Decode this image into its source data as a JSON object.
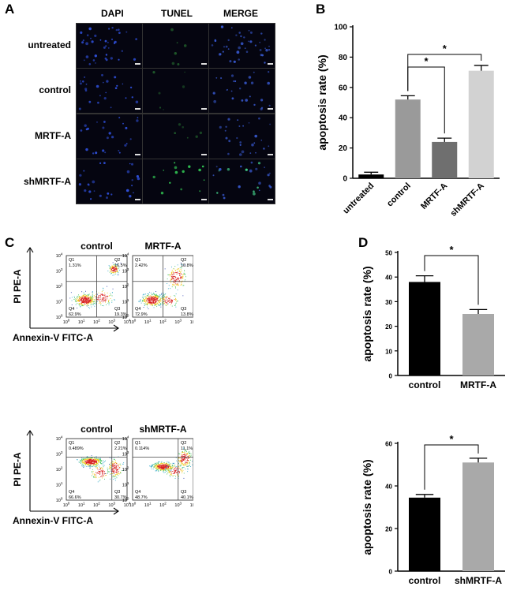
{
  "panels": {
    "A": {
      "letter": "A",
      "columns": [
        "DAPI",
        "TUNEL",
        "MERGE"
      ],
      "rows": [
        "untreated",
        "control",
        "MRTF-A",
        "shMRTF-A"
      ]
    },
    "B": {
      "letter": "B"
    },
    "C": {
      "letter": "C",
      "y_axis": "PI PE-A",
      "x_axis": "Annexin-V FITC-A",
      "plots": [
        {
          "title": "control",
          "q1": "1.31%",
          "q2": "16.5%",
          "q3": "19.3%",
          "q4": "62.9%"
        },
        {
          "title": "MRTF-A",
          "q1": "2.42%",
          "q2": "10.8%",
          "q3": "13.8%",
          "q4": "72.9%"
        },
        {
          "title": "control",
          "q1": "0.489%",
          "q2": "2.21%",
          "q3": "30.7%",
          "q4": "66.6%"
        },
        {
          "title": "shMRTF-A",
          "q1": "0.114%",
          "q2": "11.1%",
          "q3": "40.1%",
          "q4": "48.7%"
        }
      ],
      "quadrant_names": [
        "Q1",
        "Q2",
        "Q3",
        "Q4"
      ],
      "tick_powers": [
        "0",
        "1",
        "2",
        "3",
        "4"
      ]
    },
    "D": {
      "letter": "D"
    }
  },
  "chart_data": [
    {
      "type": "bar",
      "panel": "B",
      "categories": [
        "untreated",
        "control",
        "MRTF-A",
        "shMRTF-A"
      ],
      "values": [
        2.5,
        52,
        24,
        71
      ],
      "errors": [
        1.5,
        2.5,
        2.5,
        3.5
      ],
      "colors": [
        "#000000",
        "#9a9a9a",
        "#6f6f6f",
        "#d2d2d2"
      ],
      "ylabel": "apoptosis rate (%)",
      "ylim": [
        0,
        100
      ],
      "yticks": [
        0,
        20,
        40,
        60,
        80,
        100
      ],
      "significance": [
        {
          "from": 1,
          "to": 2,
          "label": "*"
        },
        {
          "from": 1,
          "to": 3,
          "label": "*"
        }
      ]
    },
    {
      "type": "bar",
      "panel": "D",
      "categories": [
        "control",
        "MRTF-A"
      ],
      "values": [
        38,
        25
      ],
      "errors": [
        2.5,
        1.8
      ],
      "colors": [
        "#000000",
        "#a9a9a9"
      ],
      "ylabel": "apoptosis rate (%)",
      "ylim": [
        0,
        50
      ],
      "yticks": [
        0,
        10,
        20,
        30,
        40,
        50
      ],
      "significance": [
        {
          "from": 0,
          "to": 1,
          "label": "*"
        }
      ]
    },
    {
      "type": "bar",
      "panel": "D",
      "categories": [
        "control",
        "shMRTF-A"
      ],
      "values": [
        34.5,
        51
      ],
      "errors": [
        1.5,
        2
      ],
      "colors": [
        "#000000",
        "#a9a9a9"
      ],
      "ylabel": "apoptosis rate (%)",
      "ylim": [
        0,
        60
      ],
      "yticks": [
        0,
        20,
        40,
        60
      ],
      "significance": [
        {
          "from": 0,
          "to": 1,
          "label": "*"
        }
      ]
    }
  ]
}
